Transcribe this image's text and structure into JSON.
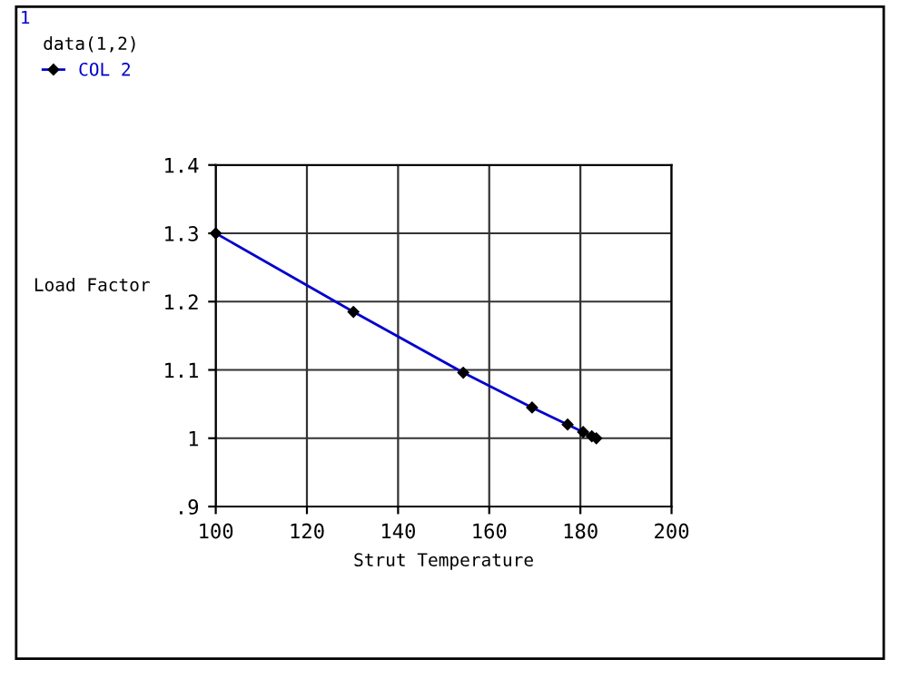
{
  "chart_data": {
    "type": "line",
    "xlabel": "Strut Temperature",
    "ylabel": "Load Factor",
    "legend_title": "data(1,2)",
    "annotations": [
      "1"
    ],
    "series": [
      {
        "name": "COL 2",
        "color": "#0000cc",
        "x": [
          100,
          130.2,
          154.3,
          169.4,
          177.2,
          180.6,
          182.5,
          183.5
        ],
        "values": [
          1.3,
          1.185,
          1.096,
          1.045,
          1.02,
          1.009,
          1.003,
          1.0
        ]
      }
    ],
    "xlim": [
      100,
      200
    ],
    "xticks": [
      100,
      120,
      140,
      160,
      180,
      200
    ],
    "ylim": [
      0.9,
      1.4
    ],
    "yticks": [
      {
        "value": 0.9,
        "label": ".9"
      },
      {
        "value": 1.0,
        "label": "1"
      },
      {
        "value": 1.1,
        "label": "1.1"
      },
      {
        "value": 1.2,
        "label": "1.2"
      },
      {
        "value": 1.3,
        "label": "1.3"
      },
      {
        "value": 1.4,
        "label": "1.4"
      }
    ],
    "grid": true,
    "legend": "top left",
    "marker": "diamond",
    "line_style": "solid"
  }
}
